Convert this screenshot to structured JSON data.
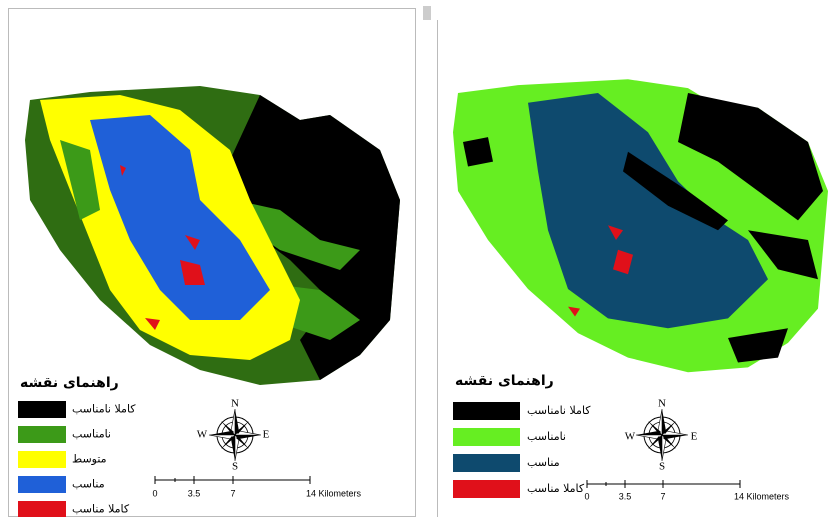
{
  "left_panel": {
    "legend": {
      "title": "راهنمای نقشه",
      "items": [
        {
          "label": "کاملا نامناسب",
          "color": "#000000"
        },
        {
          "label": "نامناسب",
          "color": "#3c9a18"
        },
        {
          "label": "متوسط",
          "color": "#ffff00"
        },
        {
          "label": "مناسب",
          "color": "#1f60d8"
        },
        {
          "label": "کاملا مناسب",
          "color": "#e0101a"
        }
      ]
    },
    "compass": {
      "north": "N",
      "south": "S",
      "east": "E",
      "west": "W"
    },
    "scale": [
      "0",
      "3.5",
      "7",
      "14 Kilometers"
    ]
  },
  "right_panel": {
    "legend": {
      "title": "راهنمای نقشه",
      "items": [
        {
          "label": "کاملا نامناسب",
          "color": "#000000"
        },
        {
          "label": "نامناسب",
          "color": "#66ee22"
        },
        {
          "label": "مناسب",
          "color": "#0e4a6e"
        },
        {
          "label": "کاملا مناسب",
          "color": "#e0101a"
        }
      ]
    },
    "compass": {
      "north": "N",
      "south": "S",
      "east": "E",
      "west": "W"
    },
    "scale": [
      "0",
      "3.5",
      "7",
      "14 Kilometers"
    ]
  }
}
